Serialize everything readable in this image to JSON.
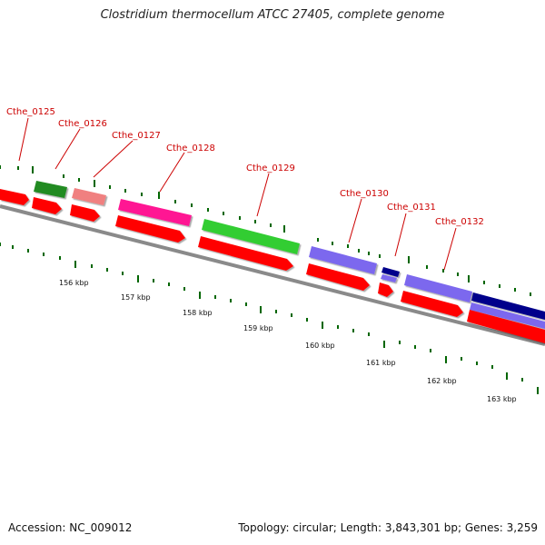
{
  "title": "Clostridium thermocellum ATCC 27405, complete genome",
  "footer": {
    "accession": "Accession: NC_009012",
    "stats": "Topology: circular; Length: 3,843,301 bp; Genes: 3,259"
  },
  "colors": {
    "label": "#cc0000",
    "cds": "#ff0000",
    "backbone": "#808080",
    "tick": "#006600"
  },
  "gene_labels": [
    "Cthe_0125",
    "Cthe_0126",
    "Cthe_0127",
    "Cthe_0128",
    "Cthe_0129",
    "Cthe_0130",
    "Cthe_0131",
    "Cthe_0132"
  ],
  "kbp_labels": [
    "156 kbp",
    "157 kbp",
    "158 kbp",
    "159 kbp",
    "160 kbp",
    "161 kbp",
    "162 kbp",
    "163 kbp"
  ],
  "feature_colors": [
    "#ff0000",
    "#228b22",
    "#f08080",
    "#ff1493",
    "#32cd32",
    "#7b68ee",
    "#00008b",
    "#7b68ee",
    "#00008b"
  ]
}
